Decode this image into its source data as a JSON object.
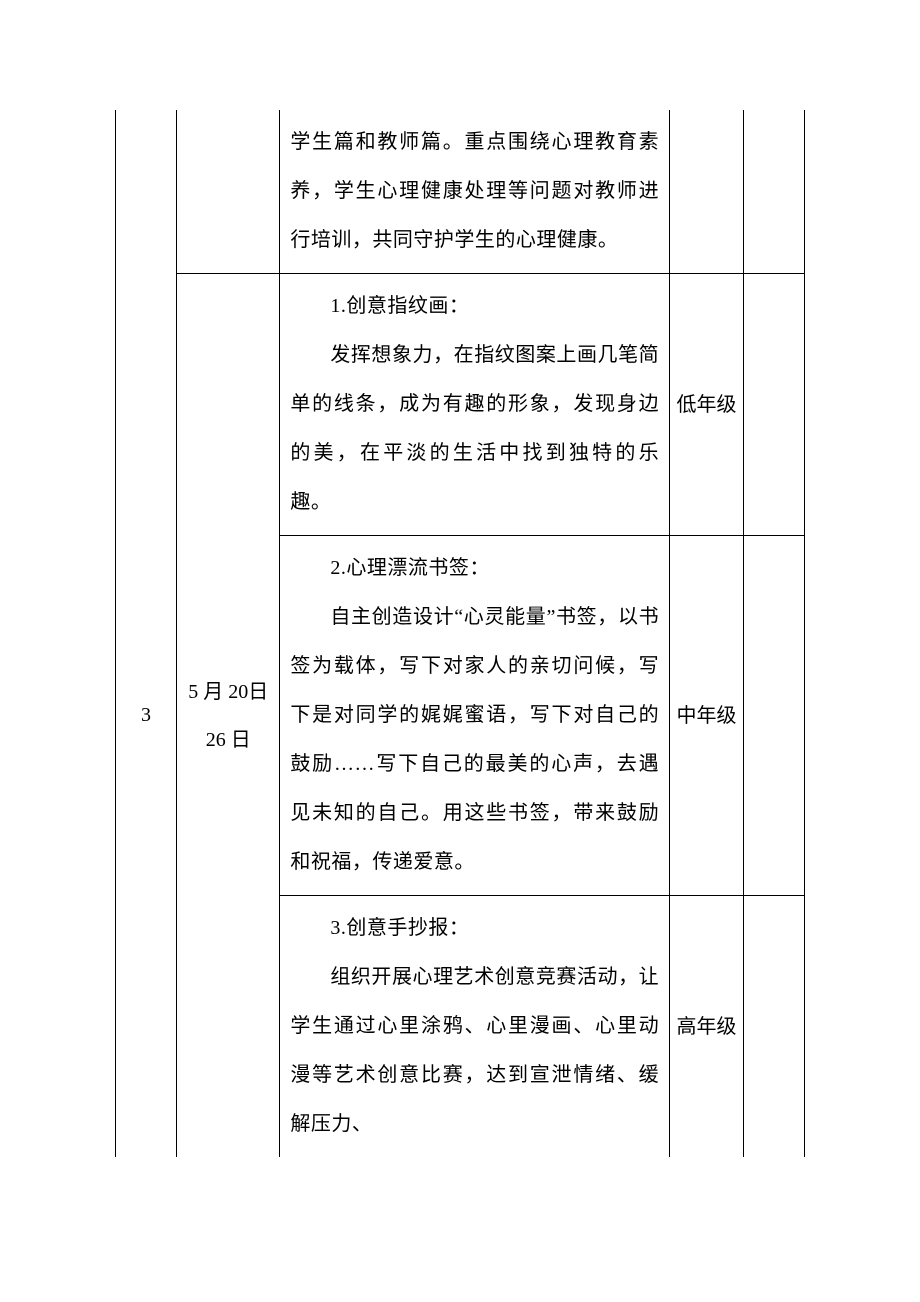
{
  "row0": {
    "content_lines": [
      "学生篇和教师篇。重点围绕心理教育素养，学生心理健康处理等问题对教师进行培训，共同守护学生的心理健康。"
    ]
  },
  "row1": {
    "seq": "3",
    "date": "5 月 20日 26 日",
    "sub": [
      {
        "title": "1.创意指纹画：",
        "body": "发挥想象力，在指纹图案上画几笔简单的线条，成为有趣的形象，发现身边的美，在平淡的生活中找到独特的乐趣。",
        "grade": "低年级"
      },
      {
        "title": "2.心理漂流书签：",
        "body": "自主创造设计“心灵能量”书签，以书签为载体，写下对家人的亲切问候，写下是对同学的娓娓蜜语，写下对自己的鼓励……写下自己的最美的心声，去遇见未知的自己。用这些书签，带来鼓励和祝福，传递爱意。",
        "grade": "中年级"
      },
      {
        "title": "3.创意手抄报：",
        "body": "组织开展心理艺术创意竞赛活动，让学生通过心里涂鸦、心里漫画、心里动漫等艺术创意比赛，达到宣泄情绪、缓解压力、",
        "grade": "高年级"
      }
    ]
  }
}
